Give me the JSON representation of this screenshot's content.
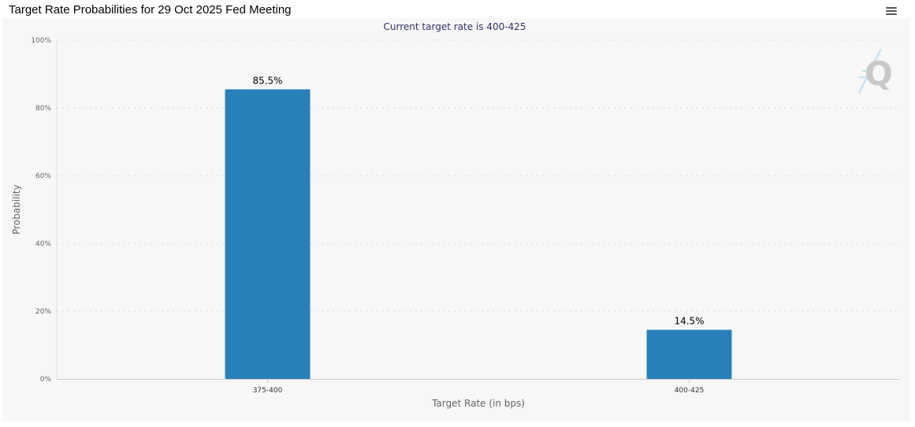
{
  "page": {
    "title": "Target Rate Probabilities for 29 Oct 2025 Fed Meeting"
  },
  "menu": {
    "icon": "hamburger-menu-icon"
  },
  "watermark": {
    "text": "Q",
    "icon": "quikstrike-logo-icon"
  },
  "chart_data": {
    "type": "bar",
    "title": "",
    "subtitle": "Current target rate is 400-425",
    "xlabel": "Target Rate (in bps)",
    "ylabel": "Probability",
    "categories": [
      "375-400",
      "400-425"
    ],
    "values": [
      85.5,
      14.5
    ],
    "data_labels": [
      "85.5%",
      "14.5%"
    ],
    "ylim": [
      0,
      100
    ],
    "y_ticks": [
      0,
      20,
      40,
      60,
      80,
      100
    ],
    "y_tick_labels": [
      "0%",
      "20%",
      "40%",
      "60%",
      "80%",
      "100%"
    ],
    "grid": true,
    "legend": "none",
    "colors": {
      "bar": "#2980b9",
      "grid": "#d9d9d9",
      "axis": "#cccccc"
    }
  }
}
